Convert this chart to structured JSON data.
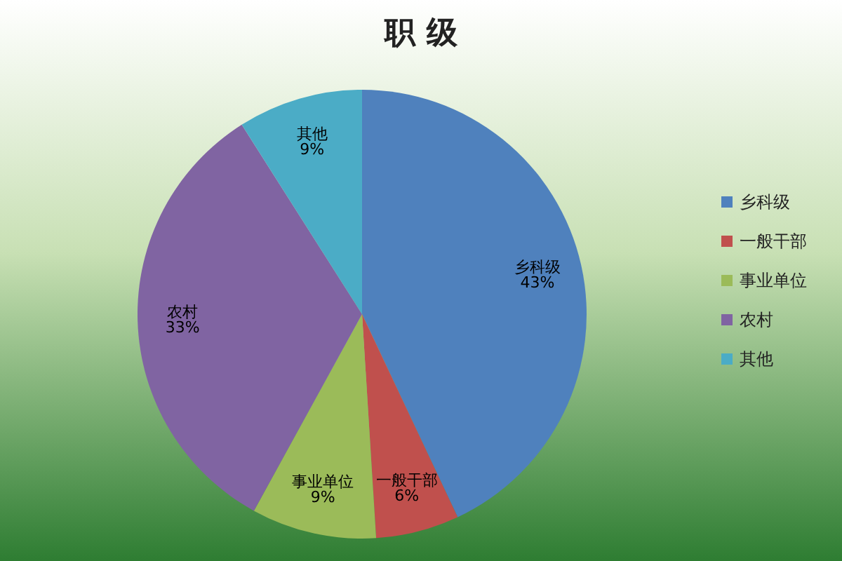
{
  "chart_data": {
    "type": "pie",
    "title": "职 级",
    "categories": [
      "乡科级",
      "一般干部",
      "事业单位",
      "农村",
      "其他"
    ],
    "values": [
      43,
      6,
      9,
      33,
      9
    ],
    "value_labels": [
      "43%",
      "6%",
      "9%",
      "33%",
      "9%"
    ],
    "colors": [
      "#4f81bd",
      "#c0504d",
      "#9bbb59",
      "#8064a2",
      "#4bacc6"
    ],
    "legend": "right"
  }
}
